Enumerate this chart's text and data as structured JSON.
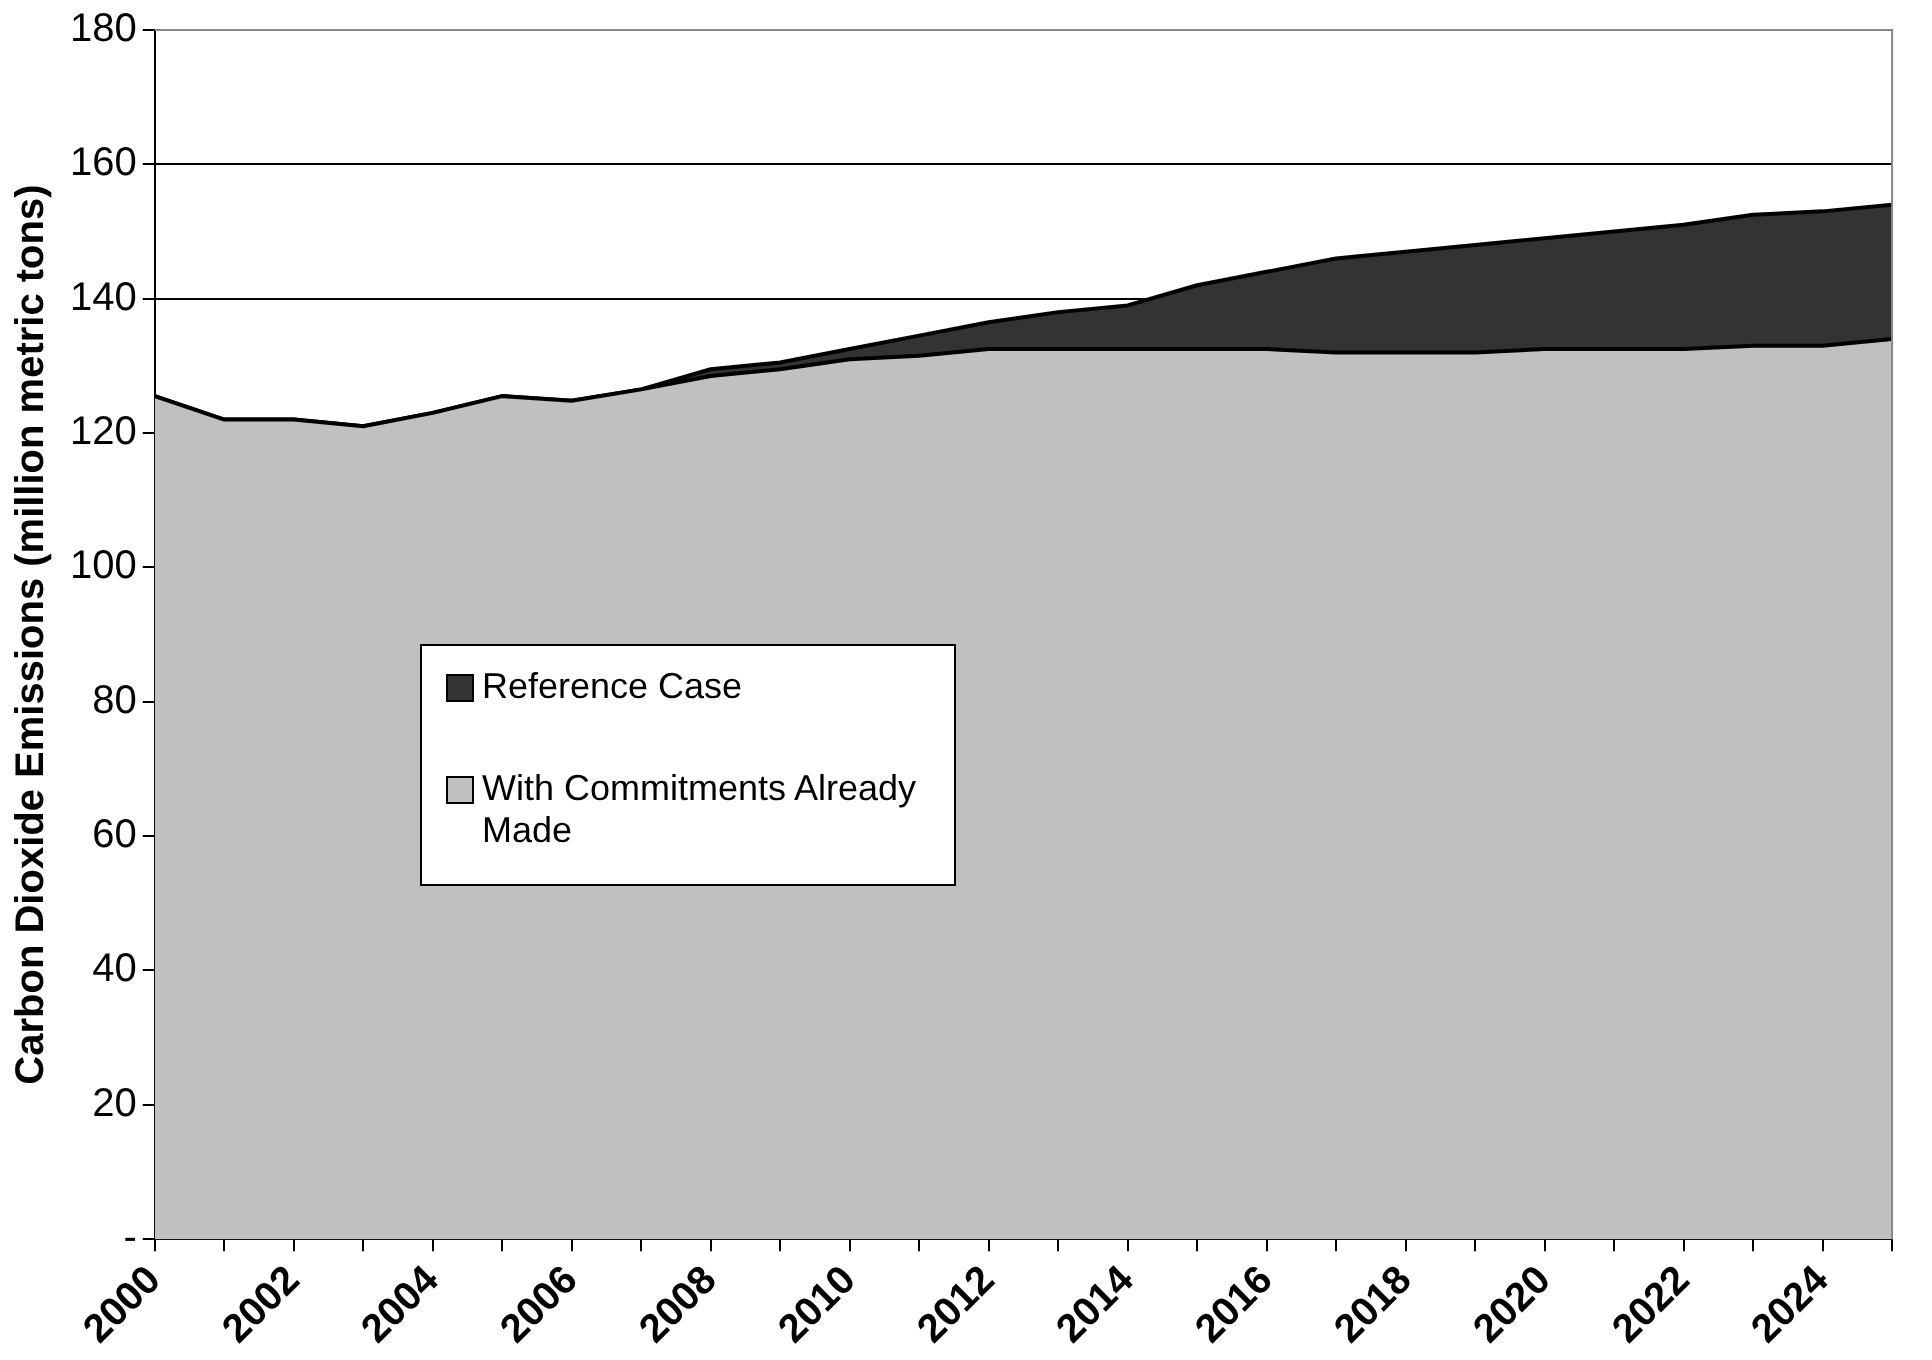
{
  "chart_data": {
    "type": "area",
    "ylabel": "Carbon Dioxide Emissions (million metric tons)",
    "x": [
      2000,
      2001,
      2002,
      2003,
      2004,
      2005,
      2006,
      2007,
      2008,
      2009,
      2010,
      2011,
      2012,
      2013,
      2014,
      2015,
      2016,
      2017,
      2018,
      2019,
      2020,
      2021,
      2022,
      2023,
      2024,
      2025
    ],
    "series": [
      {
        "name": "Reference Case",
        "color": "#333333",
        "values": [
          125.5,
          122,
          122,
          121,
          123,
          125.5,
          124.8,
          126.5,
          129.5,
          130.5,
          132.5,
          134.5,
          136.5,
          138,
          139,
          142,
          144,
          146,
          147,
          148,
          149,
          150,
          151,
          152.5,
          153,
          154
        ]
      },
      {
        "name": "With Commitments Already Made",
        "color": "#c0c0c0",
        "values": [
          125.5,
          122,
          122,
          121,
          123,
          125.5,
          124.8,
          126.5,
          128.5,
          129.5,
          131,
          131.5,
          132.5,
          132.5,
          132.5,
          132.5,
          132.5,
          132,
          132,
          132,
          132.5,
          132.5,
          132.5,
          133,
          133,
          134
        ]
      }
    ],
    "xlim": [
      2000,
      2025
    ],
    "xticks": [
      2000,
      {
        "value": 2001,
        "label": null
      },
      2002,
      {
        "value": 2003,
        "label": null
      },
      2004,
      {
        "value": 2005,
        "label": null
      },
      2006,
      {
        "value": 2007,
        "label": null
      },
      2008,
      {
        "value": 2009,
        "label": null
      },
      2010,
      {
        "value": 2011,
        "label": null
      },
      2012,
      {
        "value": 2013,
        "label": null
      },
      2014,
      {
        "value": 2015,
        "label": null
      },
      2016,
      {
        "value": 2017,
        "label": null
      },
      2018,
      {
        "value": 2019,
        "label": null
      },
      2020,
      {
        "value": 2021,
        "label": null
      },
      2022,
      {
        "value": 2023,
        "label": null
      },
      2024,
      {
        "value": 2025,
        "label": null
      }
    ],
    "ylim": [
      0,
      180
    ],
    "yticks": [
      {
        "value": 0,
        "label": "-"
      },
      20,
      40,
      60,
      80,
      100,
      120,
      140,
      160,
      180
    ],
    "grid": "y",
    "legend": "left"
  }
}
